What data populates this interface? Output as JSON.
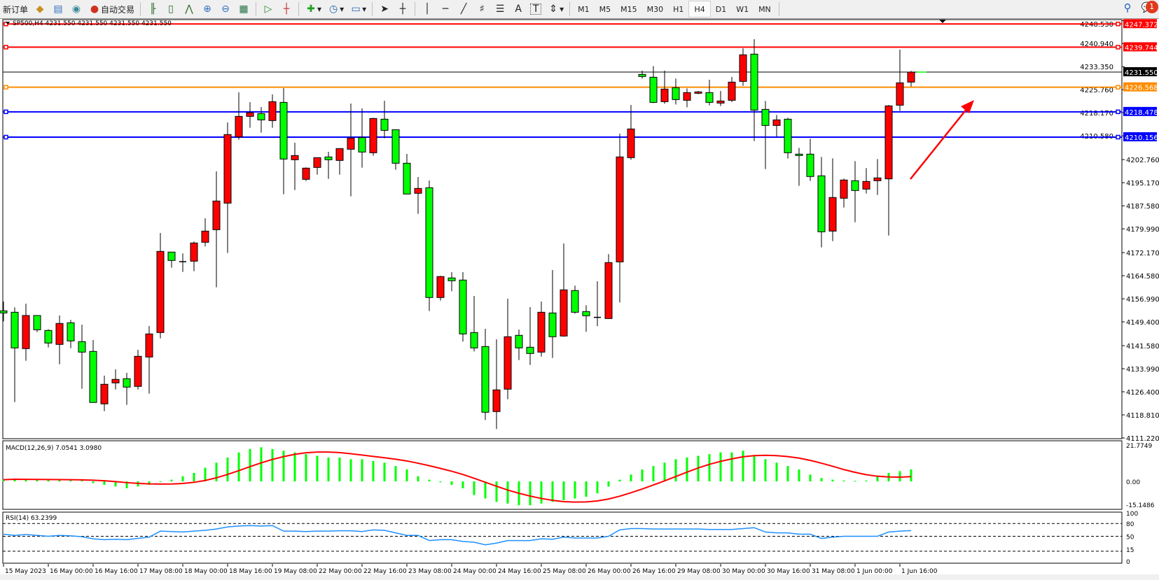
{
  "toolbar": {
    "new_order_label": "新订单",
    "auto_trading_label": "自动交易",
    "icons": [
      "market-watch-icon",
      "navigator-icon",
      "signals-icon",
      "auto-trading-icon",
      "bar-chart-icon",
      "candlestick-icon",
      "line-chart-icon",
      "zoom-in-icon",
      "zoom-out-icon",
      "tile-windows-icon",
      "auto-scroll-icon",
      "chart-shift-icon",
      "indicators-icon",
      "periods-icon",
      "templates-icon",
      "cursor-icon",
      "crosshair-icon",
      "vertical-line-icon",
      "horizontal-line-icon",
      "trendline-icon",
      "fibonacci-icon",
      "fibonacci-fan-icon",
      "text-icon",
      "text-label-icon",
      "arrows-icon"
    ],
    "drawing_labels": {
      "text": "A",
      "label": "T"
    },
    "timeframes": [
      "M1",
      "M5",
      "M15",
      "M30",
      "H1",
      "H4",
      "D1",
      "W1",
      "MN"
    ],
    "active_timeframe": "H4",
    "notification_count": "1"
  },
  "chart_header": "SP500,H4  4231.550 4231.550 4231.550 4231.550",
  "colors": {
    "bull": "#ff0000",
    "bear": "#00ff00",
    "bid_line": "#000000",
    "macd_hist": "#00ff00",
    "macd_signal": "#ff0000",
    "rsi": "#1e90ff"
  },
  "chart_data": {
    "type": "candlestick",
    "symbol": "SP500",
    "timeframe": "H4",
    "ylim": [
      4111.22,
      4248.53
    ],
    "price_ticks": [
      "4248.530",
      "4240.940",
      "4233.350",
      "4225.760",
      "4218.170",
      "4210.580",
      "4202.760",
      "4195.170",
      "4187.580",
      "4179.990",
      "4172.170",
      "4164.580",
      "4156.990",
      "4149.400",
      "4141.580",
      "4133.990",
      "4126.400",
      "4118.810",
      "4111.220"
    ],
    "time_labels": [
      "15 May 2023",
      "16 May 00:00",
      "16 May 16:00",
      "17 May 08:00",
      "18 May 00:00",
      "18 May 16:00",
      "19 May 08:00",
      "22 May 00:00",
      "22 May 16:00",
      "23 May 08:00",
      "24 May 00:00",
      "24 May 16:00",
      "25 May 08:00",
      "26 May 00:00",
      "26 May 16:00",
      "29 May 08:00",
      "30 May 00:00",
      "30 May 16:00",
      "31 May 08:00",
      "1 Jun 00:00",
      "1 Jun 16:00"
    ],
    "ohlc": [
      [
        4153.02,
        4156.09,
        4149.57,
        4152.33
      ],
      [
        4152.56,
        4154.17,
        4123.04,
        4140.83
      ],
      [
        4140.6,
        4155.4,
        4136.6,
        4151.49
      ],
      [
        4151.49,
        4151.6,
        4146.05,
        4146.8
      ],
      [
        4146.58,
        4146.96,
        4141.0,
        4142.44
      ],
      [
        4141.98,
        4151.49,
        4135.46,
        4148.88
      ],
      [
        4149.1,
        4150.03,
        4140.76,
        4143.13
      ],
      [
        4142.9,
        4148.5,
        4127.41,
        4139.45
      ],
      [
        4139.68,
        4143.44,
        4122.89,
        4122.89
      ],
      [
        4122.43,
        4131.71,
        4120.05,
        4128.87
      ],
      [
        4129.33,
        4133.78,
        4127.18,
        4130.48
      ],
      [
        4130.71,
        4132.63,
        4122.12,
        4127.95
      ],
      [
        4128.18,
        4140.22,
        4127.18,
        4138.07
      ],
      [
        4137.84,
        4148.04,
        4125.8,
        4145.43
      ],
      [
        4145.89,
        4178.64,
        4143.97,
        4172.58
      ],
      [
        4172.35,
        4172.4,
        4167.21,
        4169.59
      ],
      [
        4169.2,
        4171.89,
        4165.83,
        4169.2
      ],
      [
        4169.36,
        4175.8,
        4166.06,
        4175.34
      ],
      [
        4175.57,
        4183.47,
        4174.19,
        4179.25
      ],
      [
        4179.71,
        4198.88,
        4160.77,
        4189.14
      ],
      [
        4188.45,
        4214.99,
        4172.04,
        4211.0
      ],
      [
        4210.23,
        4224.88,
        4209.31,
        4216.98
      ],
      [
        4216.98,
        4221.66,
        4213.22,
        4218.21
      ],
      [
        4217.9,
        4220.05,
        4211.61,
        4215.83
      ],
      [
        4215.6,
        4224.19,
        4213.22,
        4221.81
      ],
      [
        4221.58,
        4226.26,
        4191.37,
        4202.95
      ],
      [
        4202.72,
        4208.32,
        4192.75,
        4204.1
      ],
      [
        4196.28,
        4200.19,
        4195.74,
        4199.96
      ],
      [
        4200.19,
        4203.41,
        4197.81,
        4203.41
      ],
      [
        4203.64,
        4205.33,
        4196.43,
        4202.72
      ],
      [
        4202.49,
        4206.4,
        4197.81,
        4206.4
      ],
      [
        4206.17,
        4221.2,
        4190.68,
        4209.85
      ],
      [
        4210.0,
        4219.59,
        4200.11,
        4205.25
      ],
      [
        4205.02,
        4216.52,
        4204.02,
        4216.29
      ],
      [
        4216.06,
        4222.12,
        4209.77,
        4212.38
      ],
      [
        4212.61,
        4212.7,
        4199.42,
        4201.57
      ],
      [
        4201.57,
        4204.64,
        4191.4,
        4191.44
      ],
      [
        4191.68,
        4197.04,
        4184.93,
        4193.28
      ],
      [
        4193.52,
        4195.89,
        4152.95,
        4157.4
      ],
      [
        4157.4,
        4164.53,
        4156.4,
        4164.3
      ],
      [
        4163.84,
        4165.76,
        4159.47,
        4162.92
      ],
      [
        4163.15,
        4165.76,
        4142.9,
        4145.43
      ],
      [
        4145.89,
        4157.93,
        4139.68,
        4140.83
      ],
      [
        4141.29,
        4147.12,
        4117.14,
        4119.67
      ],
      [
        4119.9,
        4143.67,
        4114.14,
        4127.03
      ],
      [
        4127.26,
        4157.0,
        4123.96,
        4144.51
      ],
      [
        4144.97,
        4146.89,
        4136.84,
        4140.83
      ],
      [
        4141.06,
        4154.25,
        4135.23,
        4138.99
      ],
      [
        4139.45,
        4156.09,
        4138.0,
        4152.56
      ],
      [
        4152.33,
        4166.44,
        4137.54,
        4144.51
      ],
      [
        4144.74,
        4175.19,
        4144.51,
        4159.93
      ],
      [
        4159.7,
        4161.31,
        4152.1,
        4152.56
      ],
      [
        4152.79,
        4154.87,
        4146.12,
        4151.41
      ],
      [
        4150.88,
        4162.76,
        4147.96,
        4150.88
      ],
      [
        4150.49,
        4171.66,
        4150.49,
        4168.9
      ],
      [
        4169.13,
        4211.31,
        4155.79,
        4203.64
      ],
      [
        4203.41,
        4220.74,
        4202.72,
        4212.84
      ],
      [
        4230.79,
        4232.01,
        4229.4,
        4230.1
      ],
      [
        4229.86,
        4233.5,
        4221.35,
        4221.58
      ],
      [
        4221.81,
        4232.01,
        4221.12,
        4225.95
      ],
      [
        4226.41,
        4229.4,
        4220.89,
        4222.5
      ],
      [
        4222.27,
        4226.18,
        4219.97,
        4224.8
      ],
      [
        4224.57,
        4225.34,
        4224.27,
        4225.03
      ],
      [
        4224.8,
        4229.02,
        4220.59,
        4221.58
      ],
      [
        4221.35,
        4225.34,
        4220.36,
        4222.04
      ],
      [
        4222.27,
        4229.94,
        4221.73,
        4228.25
      ],
      [
        4228.48,
        4239.37,
        4227.03,
        4237.23
      ],
      [
        4237.46,
        4242.36,
        4208.85,
        4219.05
      ],
      [
        4219.28,
        4222.04,
        4199.65,
        4213.99
      ],
      [
        4213.99,
        4217.44,
        4210.31,
        4215.83
      ],
      [
        4216.06,
        4216.52,
        4203.1,
        4205.02
      ],
      [
        4204.56,
        4206.63,
        4194.13,
        4204.1
      ],
      [
        4204.56,
        4209.62,
        4195.74,
        4197.2
      ],
      [
        4197.43,
        4203.64,
        4173.88,
        4179.02
      ],
      [
        4179.25,
        4203.18,
        4175.96,
        4190.3
      ],
      [
        4190.06,
        4196.51,
        4186.99,
        4196.05
      ],
      [
        4195.82,
        4202.26,
        4182.17,
        4192.6
      ],
      [
        4193.06,
        4199.96,
        4191.6,
        4195.59
      ],
      [
        4195.82,
        4202.95,
        4191.14,
        4196.74
      ],
      [
        4196.43,
        4220.74,
        4177.79,
        4220.43
      ],
      [
        4220.66,
        4238.91,
        4218.82,
        4228.02
      ],
      [
        4228.25,
        4231.93,
        4226.8,
        4231.55
      ]
    ],
    "horizontal_lines": [
      {
        "price": 4247.372,
        "label": "4247.372",
        "color": "#ff0000"
      },
      {
        "price": 4239.744,
        "label": "4239.744",
        "color": "#ff0000"
      },
      {
        "price": 4231.55,
        "label": "4231.550",
        "color": "#000000",
        "bid": true
      },
      {
        "price": 4226.568,
        "label": "4226.568",
        "color": "#ff8c00"
      },
      {
        "price": 4218.478,
        "label": "4218.478",
        "color": "#0000ff"
      },
      {
        "price": 4210.156,
        "label": "4210.156",
        "color": "#0000ff"
      }
    ],
    "annotation": {
      "type": "arrow",
      "color": "#ff0000",
      "direction": "up-right"
    },
    "macd": {
      "label": "MACD(12,26,9) 7.0541 3.0980",
      "ylim": [
        -15.1486,
        21.7749
      ],
      "ticks": [
        "21.7749",
        "0.00",
        "-15.1486"
      ],
      "main": [
        1,
        1.5,
        1.2,
        1,
        0.8,
        0.8,
        0.6,
        0.4,
        -1,
        -2,
        -3,
        -4,
        -3,
        -2,
        0,
        1,
        3,
        5,
        8,
        11,
        14,
        17,
        19,
        20,
        19,
        18,
        17,
        16,
        15,
        14,
        14,
        13,
        13,
        12,
        11,
        9,
        7,
        3,
        1,
        -0.5,
        -2,
        -4,
        -8,
        -10,
        -12,
        -13,
        -14,
        -14,
        -13,
        -12,
        -11,
        -10,
        -9,
        -7,
        -3,
        1,
        4,
        7,
        9,
        11,
        13,
        14,
        15,
        16,
        17,
        17,
        18,
        15,
        13,
        11,
        9,
        7,
        4,
        2,
        1,
        0.5,
        0.3,
        0.5,
        3,
        5,
        6,
        7.0541
      ]
    },
    "rsi": {
      "label": "RSI(14) 63.2399",
      "ticks": [
        "100",
        "80",
        "50",
        "15",
        "0"
      ],
      "levels": [
        80,
        50,
        15
      ],
      "values": [
        55,
        52,
        54,
        52,
        50,
        52,
        51,
        49,
        44,
        42,
        43,
        42,
        45,
        48,
        62,
        61,
        60,
        62,
        64,
        67,
        72,
        74,
        75,
        74,
        75,
        62,
        62,
        61,
        62,
        62,
        63,
        63,
        61,
        65,
        64,
        58,
        52,
        52,
        40,
        42,
        42,
        38,
        36,
        30,
        34,
        40,
        40,
        40,
        44,
        43,
        48,
        46,
        46,
        46,
        50,
        65,
        68,
        68,
        67,
        67,
        67,
        67,
        67,
        66,
        66,
        66,
        68,
        70,
        60,
        58,
        58,
        55,
        55,
        45,
        48,
        50,
        50,
        50,
        50,
        60,
        62,
        63.2399
      ]
    }
  }
}
